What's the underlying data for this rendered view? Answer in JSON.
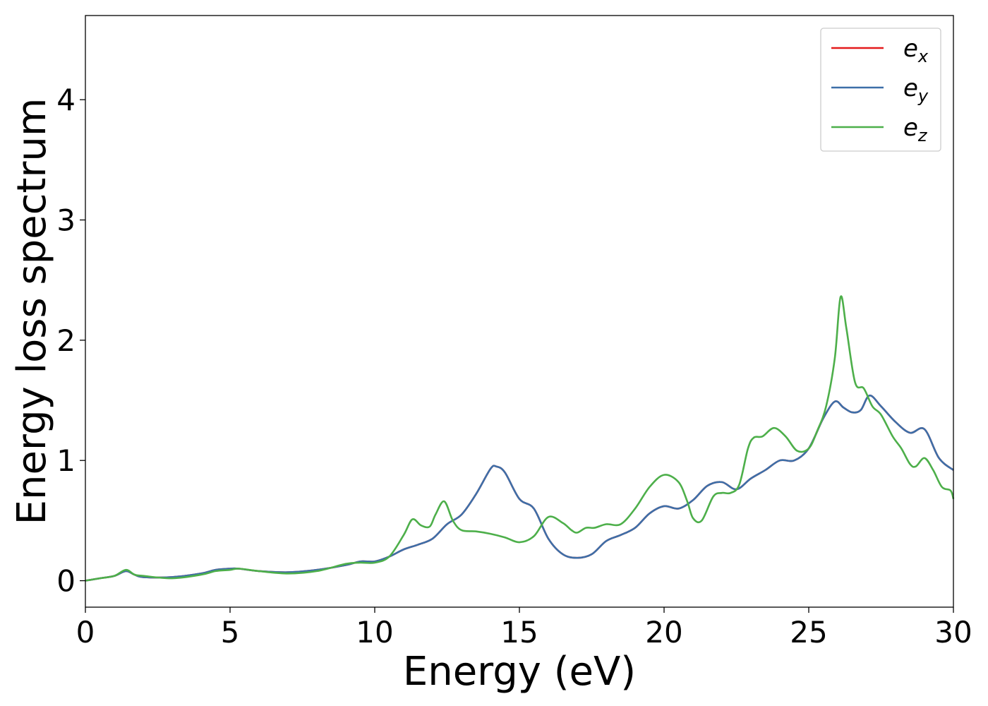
{
  "chart_data": {
    "type": "line",
    "title": "",
    "xlabel": "Energy (eV)",
    "ylabel": "Energy loss spectrum",
    "xlim": [
      0,
      30
    ],
    "ylim": [
      -0.22,
      4.7
    ],
    "xticks": [
      0,
      5,
      10,
      15,
      20,
      25,
      30
    ],
    "yticks": [
      0,
      1,
      2,
      3,
      4
    ],
    "grid": false,
    "legend_position": "top-right",
    "series": [
      {
        "name": "e",
        "subscript": "x",
        "color": "#e41a1c",
        "x": [
          0,
          0.5,
          1.0,
          1.4,
          1.7,
          2.0,
          3.0,
          4.0,
          4.5,
          5.0,
          5.3,
          6.0,
          7.0,
          8.0,
          9.0,
          9.5,
          10.0,
          10.5,
          11.0,
          11.5,
          12.0,
          12.5,
          13.0,
          13.5,
          14.0,
          14.2,
          14.5,
          15.0,
          15.5,
          16.0,
          16.5,
          17.0,
          17.5,
          18.0,
          18.5,
          19.0,
          19.5,
          20.0,
          20.5,
          21.0,
          21.5,
          22.0,
          22.5,
          23.0,
          23.5,
          24.0,
          24.5,
          25.0,
          25.5,
          25.9,
          26.2,
          26.5,
          26.8,
          27.1,
          27.5,
          28.0,
          28.5,
          29.0,
          29.5,
          30.0
        ],
        "y": [
          0,
          0.02,
          0.04,
          0.08,
          0.05,
          0.03,
          0.03,
          0.06,
          0.09,
          0.1,
          0.1,
          0.08,
          0.07,
          0.09,
          0.13,
          0.16,
          0.16,
          0.2,
          0.26,
          0.3,
          0.35,
          0.47,
          0.55,
          0.72,
          0.93,
          0.95,
          0.9,
          0.68,
          0.6,
          0.35,
          0.22,
          0.19,
          0.22,
          0.33,
          0.38,
          0.44,
          0.56,
          0.62,
          0.6,
          0.67,
          0.79,
          0.82,
          0.76,
          0.85,
          0.92,
          1.0,
          1.0,
          1.1,
          1.35,
          1.49,
          1.44,
          1.4,
          1.42,
          1.54,
          1.45,
          1.32,
          1.23,
          1.26,
          1.02,
          0.92
        ]
      },
      {
        "name": "e",
        "subscript": "y",
        "color": "#3d6fa8",
        "x": [
          0,
          0.5,
          1.0,
          1.4,
          1.7,
          2.0,
          3.0,
          4.0,
          4.5,
          5.0,
          5.3,
          6.0,
          7.0,
          8.0,
          9.0,
          9.5,
          10.0,
          10.5,
          11.0,
          11.5,
          12.0,
          12.5,
          13.0,
          13.5,
          14.0,
          14.2,
          14.5,
          15.0,
          15.5,
          16.0,
          16.5,
          17.0,
          17.5,
          18.0,
          18.5,
          19.0,
          19.5,
          20.0,
          20.5,
          21.0,
          21.5,
          22.0,
          22.5,
          23.0,
          23.5,
          24.0,
          24.5,
          25.0,
          25.5,
          25.9,
          26.2,
          26.5,
          26.8,
          27.1,
          27.5,
          28.0,
          28.5,
          29.0,
          29.5,
          30.0
        ],
        "y": [
          0,
          0.02,
          0.04,
          0.08,
          0.05,
          0.03,
          0.03,
          0.06,
          0.09,
          0.1,
          0.1,
          0.08,
          0.07,
          0.09,
          0.13,
          0.16,
          0.16,
          0.2,
          0.26,
          0.3,
          0.35,
          0.47,
          0.55,
          0.72,
          0.93,
          0.95,
          0.9,
          0.68,
          0.6,
          0.35,
          0.22,
          0.19,
          0.22,
          0.33,
          0.38,
          0.44,
          0.56,
          0.62,
          0.6,
          0.67,
          0.79,
          0.82,
          0.76,
          0.85,
          0.92,
          1.0,
          1.0,
          1.1,
          1.35,
          1.49,
          1.44,
          1.4,
          1.42,
          1.54,
          1.45,
          1.32,
          1.23,
          1.26,
          1.02,
          0.92
        ]
      },
      {
        "name": "e",
        "subscript": "z",
        "color": "#4daf4a",
        "x": [
          0,
          0.5,
          1.0,
          1.4,
          1.7,
          2.0,
          3.0,
          4.0,
          4.5,
          5.0,
          5.3,
          6.0,
          7.0,
          8.0,
          9.0,
          9.5,
          10.0,
          10.5,
          11.0,
          11.3,
          11.6,
          11.9,
          12.1,
          12.4,
          12.7,
          13.0,
          13.5,
          14.0,
          14.5,
          15.0,
          15.5,
          16.0,
          16.5,
          16.8,
          17.0,
          17.3,
          17.6,
          18.0,
          18.5,
          19.0,
          19.5,
          20.0,
          20.5,
          20.8,
          21.0,
          21.3,
          21.7,
          22.0,
          22.3,
          22.6,
          22.9,
          23.1,
          23.4,
          23.8,
          24.2,
          24.6,
          25.0,
          25.3,
          25.6,
          25.9,
          26.1,
          26.3,
          26.6,
          26.9,
          27.2,
          27.5,
          27.9,
          28.2,
          28.5,
          28.7,
          29.0,
          29.3,
          29.6,
          29.9,
          30.0
        ],
        "y": [
          0,
          0.02,
          0.04,
          0.09,
          0.05,
          0.04,
          0.02,
          0.05,
          0.08,
          0.09,
          0.1,
          0.08,
          0.06,
          0.08,
          0.14,
          0.15,
          0.15,
          0.2,
          0.38,
          0.51,
          0.46,
          0.45,
          0.55,
          0.66,
          0.5,
          0.42,
          0.41,
          0.39,
          0.36,
          0.32,
          0.37,
          0.53,
          0.48,
          0.42,
          0.4,
          0.44,
          0.44,
          0.47,
          0.47,
          0.6,
          0.78,
          0.88,
          0.82,
          0.66,
          0.52,
          0.5,
          0.7,
          0.73,
          0.73,
          0.8,
          1.1,
          1.19,
          1.2,
          1.27,
          1.2,
          1.08,
          1.1,
          1.25,
          1.45,
          1.85,
          2.36,
          2.1,
          1.65,
          1.6,
          1.45,
          1.38,
          1.2,
          1.1,
          0.97,
          0.95,
          1.02,
          0.92,
          0.78,
          0.75,
          0.68
        ]
      }
    ]
  }
}
